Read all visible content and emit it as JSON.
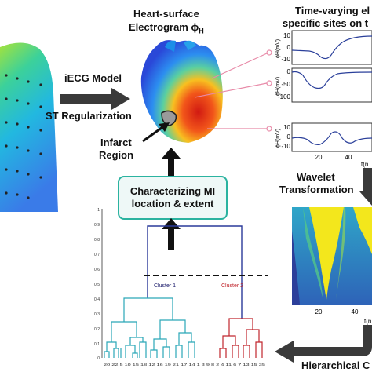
{
  "heart": {
    "title_line1": "Heart-surface",
    "title_line2": "Electrogram ϕ",
    "title_sub": "H"
  },
  "ecg_model_label": "iECG Model",
  "st_reg_label": "ST Regularization",
  "infarct_label_line1": "Infarct",
  "infarct_label_line2": "Region",
  "timevarying": {
    "line1": "Time-varying el",
    "line2": "specific sites on t"
  },
  "plots": [
    {
      "ylabel": "ϕH(mV)",
      "yticks": [
        "10",
        "0",
        "-10"
      ],
      "xticks": [],
      "xlabel": ""
    },
    {
      "ylabel": "ϕH(mV)",
      "yticks": [
        "0",
        "-50",
        "-100"
      ],
      "xticks": [],
      "xlabel": ""
    },
    {
      "ylabel": "ϕH(mV)",
      "yticks": [
        "10",
        "0",
        "-10"
      ],
      "xticks": [
        "20",
        "40"
      ],
      "xlabel": "t(n"
    }
  ],
  "wavelet": {
    "line1": "Wavelet",
    "line2": "Transformation",
    "xticks": [
      "20",
      "40"
    ],
    "xlabel": "t(n"
  },
  "mi_box": {
    "line1": "Characterizing MI",
    "line2": "location & extent"
  },
  "dendrogram": {
    "yticks": [
      "1",
      "0.9",
      "0.8",
      "0.7",
      "0.6",
      "0.5",
      "0.4",
      "0.3",
      "0.2",
      "0.1",
      "0"
    ],
    "cluster1": "Cluster 1",
    "cluster2": "Cluster 2",
    "leaves": "20 22  5 10 15 18 12 16 19 21 17 14  1  3  9  8  2  4 11  6  7 13 15 35",
    "colors": {
      "cluster1": "#2aa7b8",
      "cluster2": "#c0262d",
      "root": "#2a3a9a"
    }
  },
  "hierarchical_label": "Hierarchical C"
}
